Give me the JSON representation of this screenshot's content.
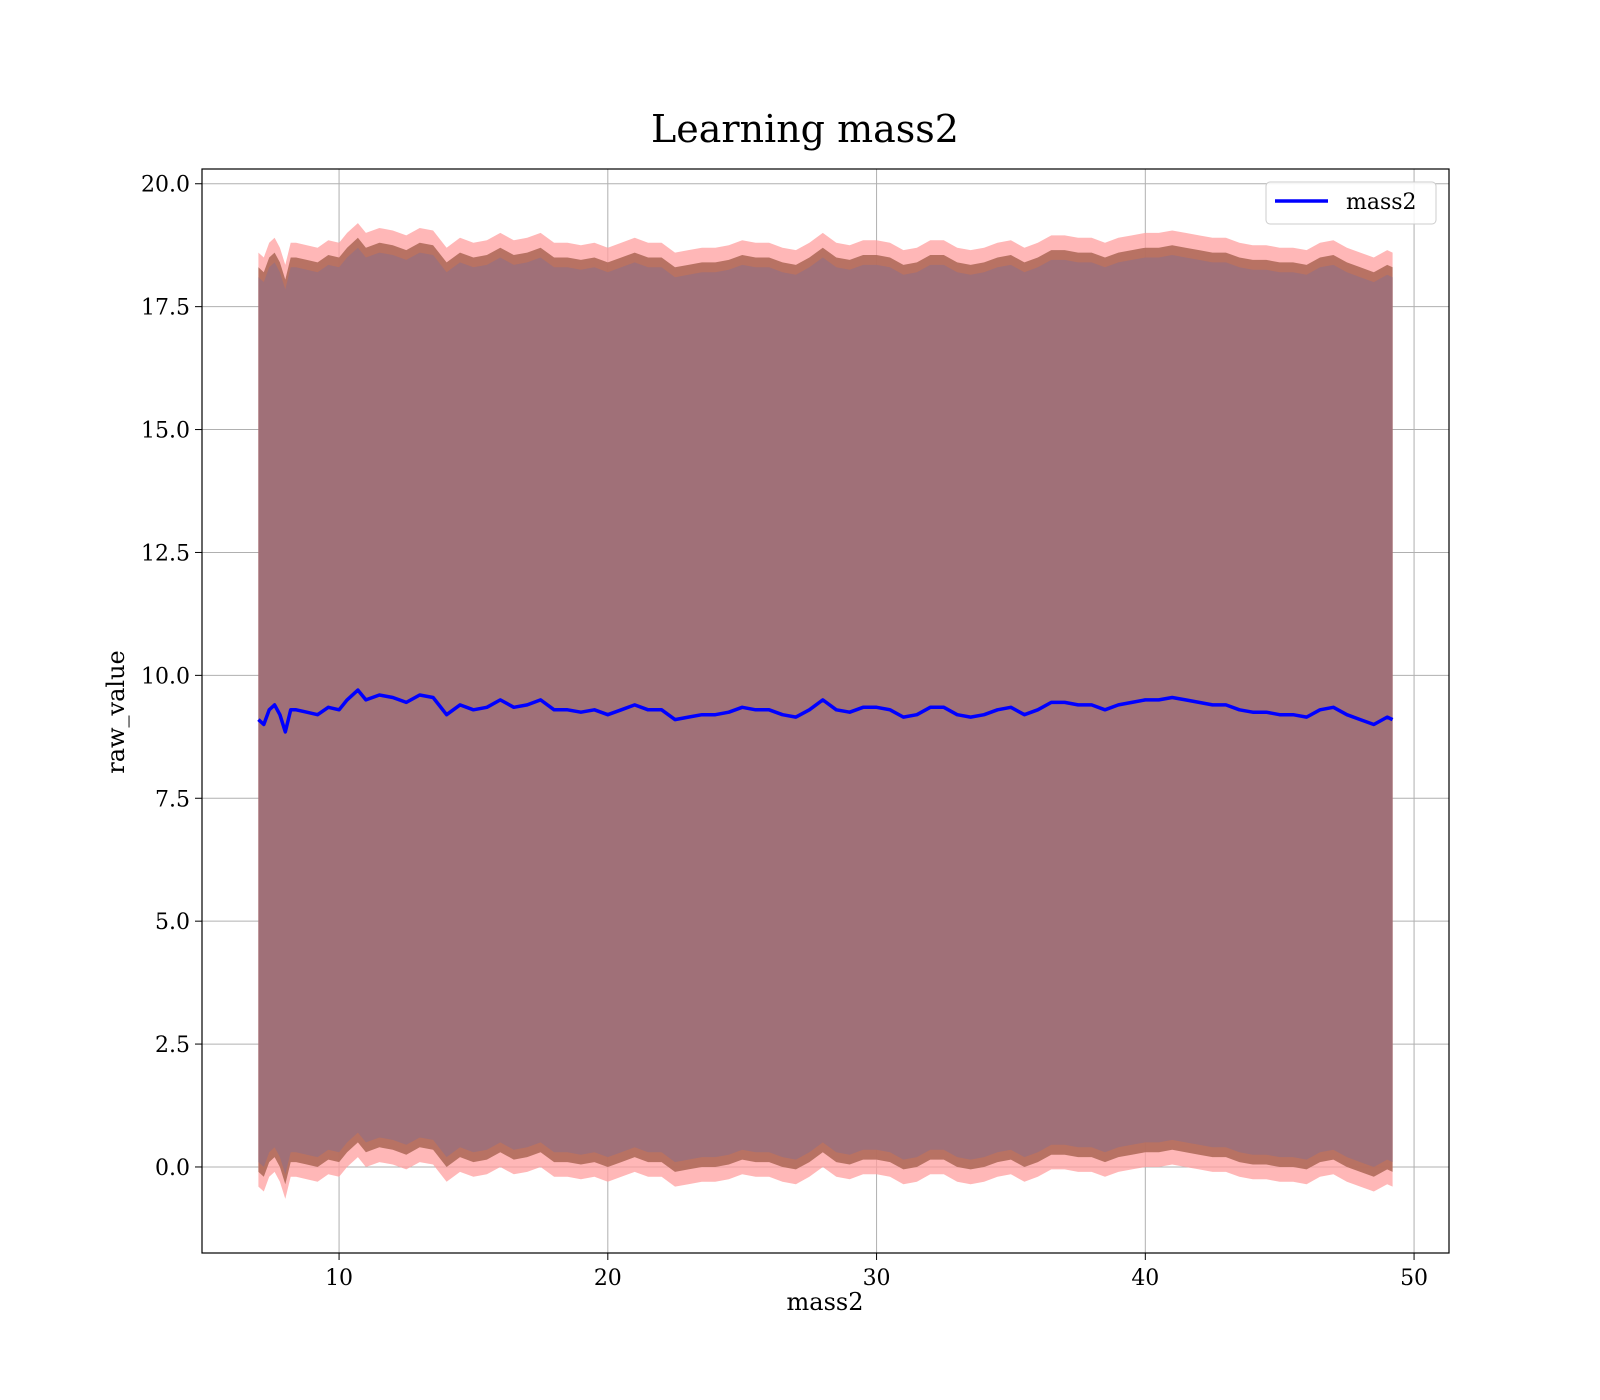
{
  "chart_data": {
    "type": "line",
    "title": "Learning mass2",
    "xlabel": "mass2",
    "ylabel": "raw_value",
    "xlim": [
      4.9,
      51.3
    ],
    "ylim": [
      -1.75,
      20.3
    ],
    "xticks": [
      10,
      20,
      30,
      40,
      50
    ],
    "xtick_labels": [
      "10",
      "20",
      "30",
      "40",
      "50"
    ],
    "yticks": [
      0.0,
      2.5,
      5.0,
      7.5,
      10.0,
      12.5,
      15.0,
      17.5,
      20.0
    ],
    "ytick_labels": [
      "0.0",
      "2.5",
      "5.0",
      "7.5",
      "10.0",
      "12.5",
      "15.0",
      "17.5",
      "20.0"
    ],
    "grid": true,
    "legend_position": "top-right",
    "colors": {
      "line": "#0000ff",
      "outer_band": "#ff9f9f",
      "middle_band": "#b06a5a",
      "inner_band": "#a07078",
      "grid": "#b0b0b0"
    },
    "series": [
      {
        "name": "mass2",
        "x": [
          7.0,
          7.2,
          7.4,
          7.6,
          7.8,
          8.0,
          8.2,
          8.4,
          8.8,
          9.2,
          9.6,
          10.0,
          10.3,
          10.7,
          11.0,
          11.5,
          12.0,
          12.5,
          13.0,
          13.5,
          14.0,
          14.5,
          15.0,
          15.5,
          16.0,
          16.5,
          17.0,
          17.5,
          18.0,
          18.5,
          19.0,
          19.5,
          20.0,
          20.5,
          21.0,
          21.5,
          22.0,
          22.5,
          23.0,
          23.5,
          24.0,
          24.5,
          25.0,
          25.5,
          26.0,
          26.5,
          27.0,
          27.5,
          28.0,
          28.5,
          29.0,
          29.5,
          30.0,
          30.5,
          31.0,
          31.5,
          32.0,
          32.5,
          33.0,
          33.5,
          34.0,
          34.5,
          35.0,
          35.5,
          36.0,
          36.5,
          37.0,
          37.5,
          38.0,
          38.5,
          39.0,
          39.5,
          40.0,
          40.5,
          41.0,
          41.5,
          42.0,
          42.5,
          43.0,
          43.5,
          44.0,
          44.5,
          45.0,
          45.5,
          46.0,
          46.5,
          47.0,
          47.5,
          48.0,
          48.5,
          49.0,
          49.2
        ],
        "y": [
          9.1,
          9.0,
          9.3,
          9.4,
          9.2,
          8.85,
          9.3,
          9.3,
          9.25,
          9.2,
          9.35,
          9.3,
          9.5,
          9.7,
          9.5,
          9.6,
          9.55,
          9.45,
          9.6,
          9.55,
          9.2,
          9.4,
          9.3,
          9.35,
          9.5,
          9.35,
          9.4,
          9.5,
          9.3,
          9.3,
          9.25,
          9.3,
          9.2,
          9.3,
          9.4,
          9.3,
          9.3,
          9.1,
          9.15,
          9.2,
          9.2,
          9.25,
          9.35,
          9.3,
          9.3,
          9.2,
          9.15,
          9.3,
          9.5,
          9.3,
          9.25,
          9.35,
          9.35,
          9.3,
          9.15,
          9.2,
          9.35,
          9.35,
          9.2,
          9.15,
          9.2,
          9.3,
          9.35,
          9.2,
          9.3,
          9.45,
          9.45,
          9.4,
          9.4,
          9.3,
          9.4,
          9.45,
          9.5,
          9.5,
          9.55,
          9.5,
          9.45,
          9.4,
          9.4,
          9.3,
          9.25,
          9.25,
          9.2,
          9.2,
          9.15,
          9.3,
          9.35,
          9.2,
          9.1,
          9.0,
          9.15,
          9.1
        ]
      }
    ]
  }
}
